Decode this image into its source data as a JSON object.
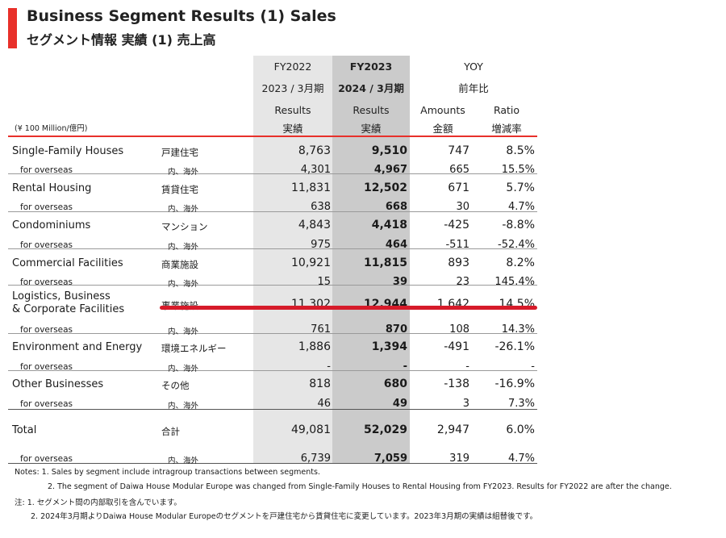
{
  "title_en": "Business Segment Results (1) Sales",
  "title_ja": "セグメント情報 実績 (1) 売上高",
  "unit": "(¥ 100 Million/億円)",
  "headers": {
    "fy22_year": "FY2022",
    "fy22_period": "2023 / 3月期",
    "fy22_results": "Results",
    "fy22_results_ja": "実績",
    "fy23_year": "FY2023",
    "fy23_period": "2024 / 3月期",
    "fy23_results": "Results",
    "fy23_results_ja": "実績",
    "yoy": "YOY",
    "yoy_ja": "前年比",
    "amounts": "Amounts",
    "amounts_ja": "金額",
    "ratio": "Ratio",
    "ratio_ja": "増減率"
  },
  "rows": [
    {
      "label": "Single-Family Houses",
      "ja": "戸建住宅",
      "fy22": "8,763",
      "fy23": "9,510",
      "amount": "747",
      "ratio": "8.5%"
    },
    {
      "label": "for overseas",
      "ja": "内、海外",
      "fy22": "4,301",
      "fy23": "4,967",
      "amount": "665",
      "ratio": "15.5%"
    },
    {
      "label": "Rental Housing",
      "ja": "賃貸住宅",
      "fy22": "11,831",
      "fy23": "12,502",
      "amount": "671",
      "ratio": "5.7%"
    },
    {
      "label": "for overseas",
      "ja": "内、海外",
      "fy22": "638",
      "fy23": "668",
      "amount": "30",
      "ratio": "4.7%"
    },
    {
      "label": "Condominiums",
      "ja": "マンション",
      "fy22": "4,843",
      "fy23": "4,418",
      "amount": "-425",
      "ratio": "-8.8%"
    },
    {
      "label": "for overseas",
      "ja": "内、海外",
      "fy22": "975",
      "fy23": "464",
      "amount": "-511",
      "ratio": "-52.4%"
    },
    {
      "label": "Commercial Facilities",
      "ja": "商業施設",
      "fy22": "10,921",
      "fy23": "11,815",
      "amount": "893",
      "ratio": "8.2%"
    },
    {
      "label": "for overseas",
      "ja": "内、海外",
      "fy22": "15",
      "fy23": "39",
      "amount": "23",
      "ratio": "145.4%"
    },
    {
      "label": "Logistics, Business",
      "label2": "& Corporate Facilities",
      "ja": "事業施設",
      "fy22": "11,302",
      "fy23": "12,944",
      "amount": "1,642",
      "ratio": "14.5%"
    },
    {
      "label": "for overseas",
      "ja": "内、海外",
      "fy22": "761",
      "fy23": "870",
      "amount": "108",
      "ratio": "14.3%"
    },
    {
      "label": "Environment and Energy",
      "ja": "環境エネルギー",
      "fy22": "1,886",
      "fy23": "1,394",
      "amount": "-491",
      "ratio": "-26.1%"
    },
    {
      "label": "for overseas",
      "ja": "内、海外",
      "fy22": "-",
      "fy23": "-",
      "amount": "-",
      "ratio": "-"
    },
    {
      "label": "Other Businesses",
      "ja": "その他",
      "fy22": "818",
      "fy23": "680",
      "amount": "-138",
      "ratio": "-16.9%"
    },
    {
      "label": "for overseas",
      "ja": "内、海外",
      "fy22": "46",
      "fy23": "49",
      "amount": "3",
      "ratio": "7.3%"
    },
    {
      "label": "Total",
      "ja": "合計",
      "fy22": "49,081",
      "fy23": "52,029",
      "amount": "2,947",
      "ratio": "6.0%"
    },
    {
      "label": "for overseas",
      "ja": "内、海外",
      "fy22": "6,739",
      "fy23": "7,059",
      "amount": "319",
      "ratio": "4.7%"
    }
  ],
  "notes": {
    "en1": "Notes: 1. Sales by segment include intragroup transactions between segments.",
    "en2": "2. The segment of Daiwa House Modular Europe was changed from Single-Family Houses to Rental Housing from FY2023. Results for FY2022 are after the change.",
    "ja1": "注: 1. セグメント間の内部取引を含んでいます。",
    "ja2": "2. 2024年3月期よりDaiwa House Modular Europeのセグメントを戸建住宅から賃貸住宅に変更しています。2023年3月期の実績は組替後です。"
  }
}
